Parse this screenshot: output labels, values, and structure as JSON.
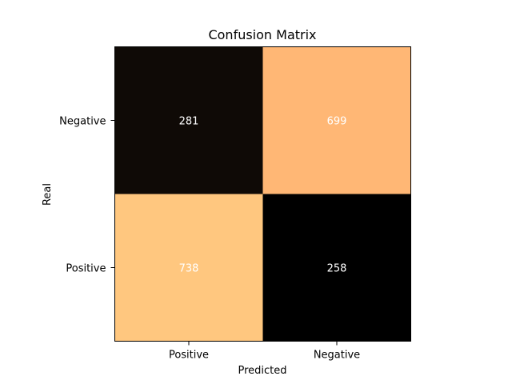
{
  "chart_data": {
    "type": "heatmap",
    "title": "Confusion Matrix",
    "xlabel": "Predicted",
    "ylabel": "Real",
    "x_categories": [
      "Positive",
      "Negative"
    ],
    "y_categories": [
      "Negative",
      "Positive"
    ],
    "values": [
      [
        281,
        699
      ],
      [
        738,
        258
      ]
    ],
    "value_labels": [
      [
        "281",
        "699"
      ],
      [
        "738",
        "258"
      ]
    ],
    "colormap": "copper",
    "grid": false,
    "colorbar": false
  }
}
